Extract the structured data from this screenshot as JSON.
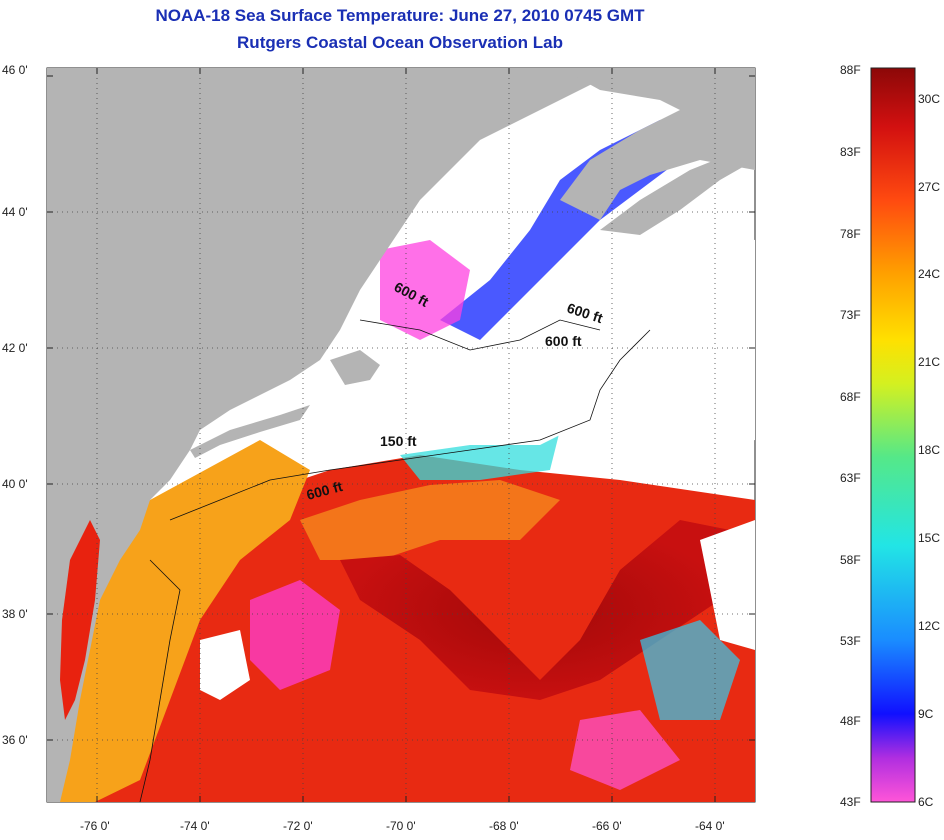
{
  "header": {
    "title": "NOAA-18 Sea Surface Temperature:  June 27, 2010 0745 GMT",
    "subtitle": "Rutgers Coastal Ocean Observation Lab"
  },
  "map": {
    "lat_labels": [
      "46 0'",
      "44 0'",
      "42 0'",
      "40 0'",
      "38 0'",
      "36 0'"
    ],
    "lon_labels": [
      "-76 0'",
      "-74 0'",
      "-72 0'",
      "-70 0'",
      "-68 0'",
      "-66 0'",
      "-64 0'"
    ],
    "depth_labels": [
      "600 ft",
      "600 ft",
      "600 ft",
      "150 ft",
      "600 ft"
    ],
    "colors": {
      "land": "#b4b4b4",
      "cloud": "#ffffff",
      "warm": "#d71010",
      "hot": "#a40a0a",
      "orange": "#f47a14",
      "yellow": "#f6b020",
      "cool_blue": "#1a1aff",
      "magenta": "#ff40e0",
      "cyan": "#33dddd"
    }
  },
  "colorbar": {
    "fahrenheit": [
      "88F",
      "83F",
      "78F",
      "73F",
      "68F",
      "63F",
      "58F",
      "53F",
      "48F",
      "43F"
    ],
    "celsius": [
      "30C",
      "27C",
      "24C",
      "21C",
      "18C",
      "15C",
      "12C",
      "9C",
      "6C"
    ]
  }
}
